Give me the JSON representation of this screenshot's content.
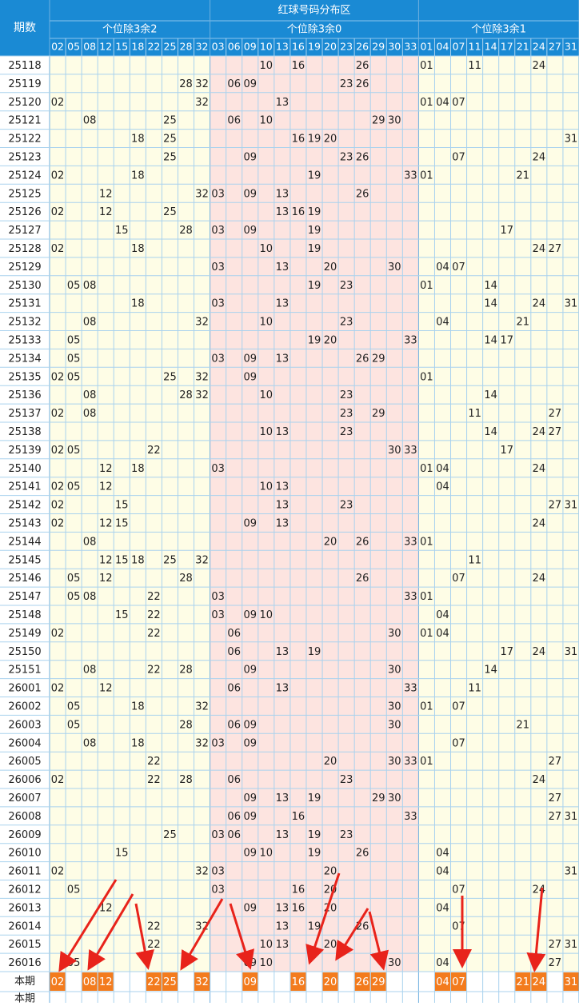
{
  "header": {
    "period_label": "期数",
    "title": "红球号码分布区"
  },
  "groups": [
    {
      "name": "个位除3余2",
      "numbers": [
        "02",
        "05",
        "08",
        "12",
        "15",
        "18",
        "22",
        "25",
        "28",
        "32"
      ]
    },
    {
      "name": "个位除3余0",
      "numbers": [
        "03",
        "06",
        "09",
        "10",
        "13",
        "16",
        "19",
        "20",
        "23",
        "26",
        "29",
        "30",
        "33"
      ]
    },
    {
      "name": "个位除3余1",
      "numbers": [
        "01",
        "04",
        "07",
        "11",
        "14",
        "17",
        "21",
        "24",
        "27",
        "31"
      ]
    }
  ],
  "rows": [
    {
      "period": "25118",
      "numbers": [
        "10",
        "16",
        "26",
        "01",
        "11",
        "24"
      ]
    },
    {
      "period": "25119",
      "numbers": [
        "28",
        "32",
        "06",
        "09",
        "23",
        "26"
      ]
    },
    {
      "period": "25120",
      "numbers": [
        "02",
        "32",
        "13",
        "01",
        "04",
        "07"
      ]
    },
    {
      "period": "25121",
      "numbers": [
        "08",
        "25",
        "06",
        "10",
        "29",
        "30"
      ]
    },
    {
      "period": "25122",
      "numbers": [
        "18",
        "25",
        "16",
        "19",
        "20",
        "31"
      ]
    },
    {
      "period": "25123",
      "numbers": [
        "25",
        "09",
        "23",
        "26",
        "07",
        "24"
      ]
    },
    {
      "period": "25124",
      "numbers": [
        "02",
        "18",
        "19",
        "33",
        "01",
        "21"
      ]
    },
    {
      "period": "25125",
      "numbers": [
        "12",
        "32",
        "03",
        "09",
        "13",
        "26"
      ]
    },
    {
      "period": "25126",
      "numbers": [
        "02",
        "12",
        "25",
        "13",
        "16",
        "19"
      ]
    },
    {
      "period": "25127",
      "numbers": [
        "15",
        "28",
        "03",
        "09",
        "19",
        "17"
      ]
    },
    {
      "period": "25128",
      "numbers": [
        "02",
        "18",
        "10",
        "19",
        "24",
        "27"
      ]
    },
    {
      "period": "25129",
      "numbers": [
        "03",
        "13",
        "20",
        "30",
        "04",
        "07"
      ]
    },
    {
      "period": "25130",
      "numbers": [
        "05",
        "08",
        "19",
        "23",
        "01",
        "14"
      ]
    },
    {
      "period": "25131",
      "numbers": [
        "18",
        "03",
        "13",
        "14",
        "24",
        "31"
      ]
    },
    {
      "period": "25132",
      "numbers": [
        "08",
        "32",
        "10",
        "23",
        "04",
        "21"
      ]
    },
    {
      "period": "25133",
      "numbers": [
        "05",
        "19",
        "20",
        "33",
        "14",
        "17"
      ]
    },
    {
      "period": "25134",
      "numbers": [
        "05",
        "03",
        "09",
        "13",
        "26",
        "29"
      ]
    },
    {
      "period": "25135",
      "numbers": [
        "02",
        "05",
        "25",
        "32",
        "09",
        "01"
      ]
    },
    {
      "period": "25136",
      "numbers": [
        "08",
        "28",
        "32",
        "10",
        "23",
        "14"
      ]
    },
    {
      "period": "25137",
      "numbers": [
        "02",
        "08",
        "23",
        "29",
        "11",
        "27"
      ]
    },
    {
      "period": "25138",
      "numbers": [
        "10",
        "13",
        "23",
        "14",
        "24",
        "27"
      ]
    },
    {
      "period": "25139",
      "numbers": [
        "02",
        "05",
        "22",
        "30",
        "33",
        "17"
      ]
    },
    {
      "period": "25140",
      "numbers": [
        "12",
        "18",
        "03",
        "01",
        "04",
        "24"
      ]
    },
    {
      "period": "25141",
      "numbers": [
        "02",
        "05",
        "12",
        "10",
        "13",
        "04"
      ]
    },
    {
      "period": "25142",
      "numbers": [
        "02",
        "15",
        "13",
        "23",
        "27",
        "31"
      ]
    },
    {
      "period": "25143",
      "numbers": [
        "02",
        "12",
        "15",
        "09",
        "13",
        "24"
      ]
    },
    {
      "period": "25144",
      "numbers": [
        "08",
        "20",
        "26",
        "33",
        "01"
      ]
    },
    {
      "period": "25145",
      "numbers": [
        "12",
        "15",
        "18",
        "25",
        "32",
        "11"
      ]
    },
    {
      "period": "25146",
      "numbers": [
        "05",
        "12",
        "28",
        "26",
        "07",
        "24"
      ]
    },
    {
      "period": "25147",
      "numbers": [
        "05",
        "08",
        "22",
        "03",
        "33",
        "01"
      ]
    },
    {
      "period": "25148",
      "numbers": [
        "15",
        "22",
        "03",
        "09",
        "10",
        "04"
      ]
    },
    {
      "period": "25149",
      "numbers": [
        "02",
        "22",
        "06",
        "30",
        "01",
        "04"
      ]
    },
    {
      "period": "25150",
      "numbers": [
        "06",
        "13",
        "19",
        "17",
        "24",
        "31"
      ]
    },
    {
      "period": "25151",
      "numbers": [
        "08",
        "22",
        "28",
        "09",
        "30",
        "14"
      ]
    },
    {
      "period": "26001",
      "numbers": [
        "02",
        "12",
        "06",
        "13",
        "33",
        "11"
      ]
    },
    {
      "period": "26002",
      "numbers": [
        "05",
        "18",
        "32",
        "30",
        "01",
        "07"
      ]
    },
    {
      "period": "26003",
      "numbers": [
        "05",
        "28",
        "06",
        "09",
        "30",
        "21"
      ]
    },
    {
      "period": "26004",
      "numbers": [
        "08",
        "18",
        "32",
        "03",
        "09",
        "07"
      ]
    },
    {
      "period": "26005",
      "numbers": [
        "22",
        "20",
        "30",
        "33",
        "01",
        "27"
      ]
    },
    {
      "period": "26006",
      "numbers": [
        "02",
        "22",
        "28",
        "06",
        "23",
        "24"
      ]
    },
    {
      "period": "26007",
      "numbers": [
        "09",
        "13",
        "19",
        "29",
        "30",
        "27"
      ]
    },
    {
      "period": "26008",
      "numbers": [
        "06",
        "09",
        "16",
        "33",
        "27",
        "31"
      ]
    },
    {
      "period": "26009",
      "numbers": [
        "25",
        "03",
        "06",
        "13",
        "19",
        "23"
      ]
    },
    {
      "period": "26010",
      "numbers": [
        "15",
        "09",
        "10",
        "19",
        "26",
        "04"
      ]
    },
    {
      "period": "26011",
      "numbers": [
        "02",
        "32",
        "03",
        "20",
        "04",
        "31"
      ]
    },
    {
      "period": "26012",
      "numbers": [
        "05",
        "03",
        "16",
        "20",
        "07",
        "24"
      ]
    },
    {
      "period": "26013",
      "numbers": [
        "12",
        "09",
        "13",
        "16",
        "20",
        "04"
      ]
    },
    {
      "period": "26014",
      "numbers": [
        "22",
        "32",
        "13",
        "19",
        "26",
        "07"
      ]
    },
    {
      "period": "26015",
      "numbers": [
        "22",
        "10",
        "13",
        "20",
        "27",
        "31"
      ]
    },
    {
      "period": "26016",
      "numbers": [
        "05",
        "09",
        "10",
        "30",
        "04",
        "27"
      ]
    }
  ],
  "current": {
    "label": "本期",
    "numbers": [
      "02",
      "08",
      "12",
      "22",
      "25",
      "32",
      "09",
      "16",
      "20",
      "26",
      "29",
      "04",
      "07",
      "21",
      "24",
      "31"
    ]
  },
  "next": {
    "label": "本期"
  }
}
